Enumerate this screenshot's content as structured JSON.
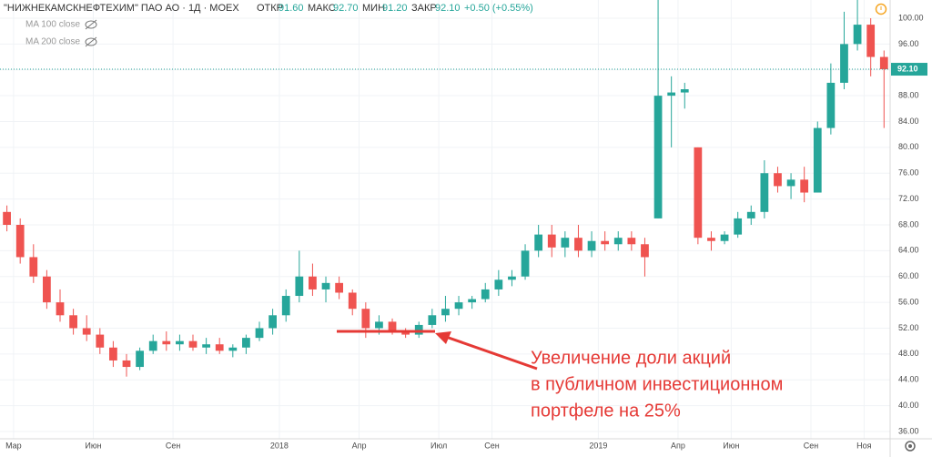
{
  "chart_data": {
    "type": "candlestick",
    "header": {
      "symbol": "\"НИЖНЕКАМСКНЕФТЕХИМ\" ПАО АО · 1Д · MOEX",
      "open_label": "ОТКР",
      "open": "91.60",
      "high_label": "МАКС",
      "high": "92.70",
      "low_label": "МИН",
      "low": "91.20",
      "close_label": "ЗАКР",
      "close": "92.10",
      "change": "+0.50 (+0.55%)"
    },
    "indicators": [
      "MA 100 close",
      "MA 200 close"
    ],
    "annotation": [
      "Увеличение доли акций",
      "в публичном инвестиционном",
      "портфеле на 25%"
    ],
    "up_color": "#26a69a",
    "down_color": "#ef5350",
    "last_price": {
      "value": 92.1,
      "label": "92.10"
    },
    "x": [
      -0.25,
      0.25,
      0.75,
      1.25,
      1.75,
      2.25,
      2.75,
      3.25,
      3.75,
      4.25,
      4.75,
      5.25,
      5.75,
      6.25,
      6.75,
      7.25,
      7.75,
      8.25,
      8.75,
      9.25,
      9.75,
      10.25,
      10.75,
      11.25,
      11.75,
      12.25,
      12.75,
      13.25,
      13.75,
      14.25,
      14.75,
      15.25,
      15.75,
      16.25,
      16.75,
      17.25,
      17.75,
      18.25,
      18.75,
      19.25,
      19.75,
      20.25,
      20.75,
      21.25,
      21.75,
      22.25,
      22.75,
      23.25,
      23.75,
      24.25,
      24.75,
      25.25,
      25.75,
      26.25,
      26.75,
      27.25,
      27.75,
      28.25,
      28.75,
      29.25,
      29.75,
      30.25,
      30.75,
      31.25,
      31.75,
      32.25,
      32.75
    ],
    "open": [
      70,
      68,
      63,
      60,
      56,
      54,
      52,
      51,
      49,
      47,
      46,
      48.5,
      50,
      49.5,
      50,
      49,
      49.5,
      48.5,
      49,
      50.5,
      52,
      54,
      57,
      60,
      58,
      59,
      57.5,
      55,
      52,
      53,
      51.5,
      51,
      52.5,
      54,
      55,
      56,
      56.5,
      58,
      59.5,
      60,
      64,
      66.5,
      64.5,
      66,
      64,
      65.5,
      65,
      66,
      65,
      69,
      88,
      88.5,
      80,
      66,
      65.5,
      66.5,
      69,
      70,
      76,
      74,
      75,
      73,
      83,
      90,
      96,
      99,
      94
    ],
    "high": [
      71,
      69,
      65,
      61,
      58,
      55,
      54,
      52,
      50,
      48,
      49,
      51,
      51.5,
      51,
      51,
      50.5,
      50.5,
      49.5,
      51,
      53,
      55,
      58,
      64,
      62,
      60,
      60,
      58,
      56,
      54,
      53.5,
      52,
      53,
      55,
      57,
      57,
      57,
      59,
      61,
      61,
      65,
      68,
      68,
      67,
      68,
      67,
      67,
      67,
      67,
      66,
      103,
      91,
      90,
      80,
      67,
      67,
      70,
      71,
      78,
      77,
      76,
      77,
      84,
      93,
      101,
      103,
      100,
      95
    ],
    "low": [
      67,
      62,
      59,
      55,
      53,
      51,
      50,
      48,
      46,
      44.5,
      45.5,
      48,
      48.5,
      48.5,
      48.5,
      48,
      48,
      47.5,
      48,
      50,
      51,
      53,
      56,
      57,
      56,
      56.5,
      54,
      50.5,
      51,
      51,
      50.5,
      50.5,
      52,
      53,
      54,
      55,
      56,
      57,
      58.5,
      59.5,
      63,
      63,
      63,
      63,
      63,
      64,
      64,
      64,
      60,
      69,
      80,
      86,
      65,
      64,
      65,
      66,
      68,
      69,
      73,
      72,
      71.5,
      73,
      82,
      89,
      95,
      91,
      83
    ],
    "close": [
      68,
      63,
      60,
      56,
      54,
      52,
      51,
      49,
      47,
      46,
      48.5,
      50,
      49.5,
      50,
      49,
      49.5,
      48.5,
      49,
      50.5,
      52,
      54,
      57,
      60,
      58,
      59,
      57.5,
      55,
      52,
      53,
      51.5,
      51,
      52.5,
      54,
      55,
      56,
      56.5,
      58,
      59.5,
      60,
      64,
      66.5,
      64.5,
      66,
      64,
      65.5,
      65,
      66,
      65,
      63,
      88,
      88.5,
      89,
      66,
      65.5,
      66.5,
      69,
      70,
      76,
      74,
      75,
      73,
      83,
      90,
      96,
      99,
      94,
      92.1
    ],
    "xlim": [
      -0.51,
      32.98
    ],
    "xticks": [
      {
        "value": 0,
        "label": "Мар"
      },
      {
        "value": 3,
        "label": "Июн"
      },
      {
        "value": 6,
        "label": "Сен"
      },
      {
        "value": 10,
        "label": "2018"
      },
      {
        "value": 13,
        "label": "Апр"
      },
      {
        "value": 16,
        "label": "Июл"
      },
      {
        "value": 18,
        "label": "Сен"
      },
      {
        "value": 22,
        "label": "2019"
      },
      {
        "value": 25,
        "label": "Апр"
      },
      {
        "value": 27,
        "label": "Июн"
      },
      {
        "value": 30,
        "label": "Сен"
      },
      {
        "value": 32,
        "label": "Ноя"
      }
    ],
    "ylim": [
      34.87,
      102.82
    ],
    "yticks": [
      {
        "value": 36,
        "label": "36.00"
      },
      {
        "value": 40,
        "label": "40.00"
      },
      {
        "value": 44,
        "label": "44.00"
      },
      {
        "value": 48,
        "label": "48.00"
      },
      {
        "value": 52,
        "label": "52.00"
      },
      {
        "value": 56,
        "label": "56.00"
      },
      {
        "value": 60,
        "label": "60.00"
      },
      {
        "value": 64,
        "label": "64.00"
      },
      {
        "value": 68,
        "label": "68.00"
      },
      {
        "value": 72,
        "label": "72.00"
      },
      {
        "value": 76,
        "label": "76.00"
      },
      {
        "value": 80,
        "label": "80.00"
      },
      {
        "value": 84,
        "label": "84.00"
      },
      {
        "value": 88,
        "label": "88.00"
      },
      {
        "value": 92,
        "label": "92.00"
      },
      {
        "value": 96,
        "label": "96.00"
      },
      {
        "value": 100,
        "label": "100.00"
      }
    ]
  }
}
